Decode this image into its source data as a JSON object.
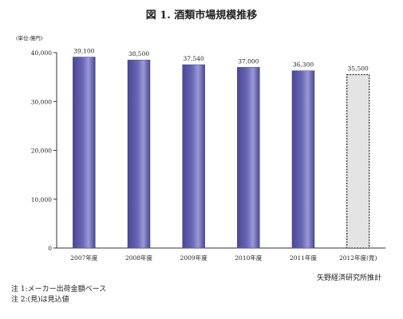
{
  "chart_data": {
    "type": "bar",
    "title": "図 1. 酒類市場規模推移",
    "ylabel": "(単位:億円)",
    "categories": [
      "2007年度",
      "2008年度",
      "2009年度",
      "2010年度",
      "2011年度",
      "2012年度(見)"
    ],
    "values": [
      39100,
      38500,
      37540,
      37000,
      36300,
      35500
    ],
    "value_labels": [
      "39,100",
      "38,500",
      "37,540",
      "37,000",
      "36,300",
      "35,500"
    ],
    "projected": [
      false,
      false,
      false,
      false,
      false,
      true
    ],
    "ylim": [
      0,
      40000
    ],
    "yticks": [
      0,
      10000,
      20000,
      30000,
      40000
    ],
    "ytick_labels": [
      "0",
      "10,000",
      "20,000",
      "30,000",
      "40,000"
    ],
    "grid": false,
    "legend": "none",
    "colors": {
      "bar": "#6a68b8",
      "bar_dark": "#4a4890",
      "bar_light": "#9b99d8",
      "projected_bar": "#e4e4e4"
    }
  },
  "source": "矢野経済研究所推計",
  "notes": [
    "注 1:メーカー出荷金額ベース",
    "注 2:(見)は見込値"
  ]
}
